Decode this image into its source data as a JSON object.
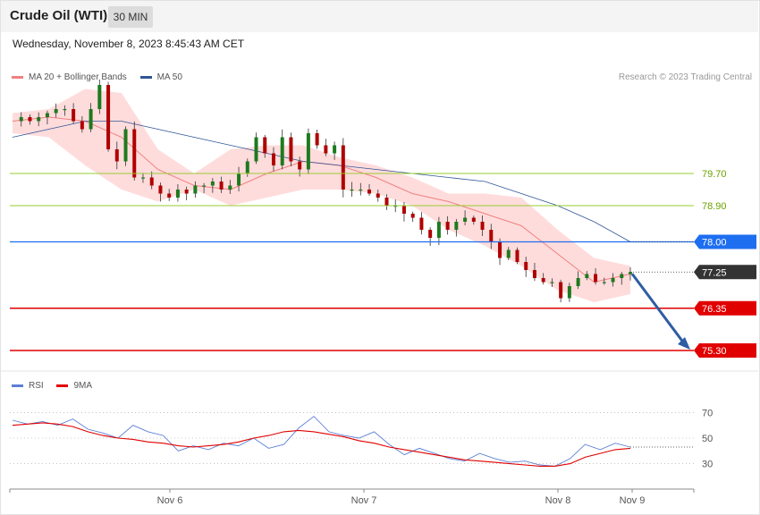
{
  "header": {
    "title": "Crude Oil (WTI)",
    "timeframe": "30 MIN",
    "datetime": "Wednesday, November 8, 2023 8:45:43 AM CET"
  },
  "legend_price": [
    {
      "label": "MA 20 + Bollinger Bands",
      "color": "#f08080"
    },
    {
      "label": "MA 50",
      "color": "#2f5597"
    }
  ],
  "legend_rsi": [
    {
      "label": "RSI",
      "color": "#5b7fd6"
    },
    {
      "label": "9MA",
      "color": "#e00000"
    }
  ],
  "credit": "Research © 2023 Trading Central",
  "colors": {
    "bull": "#1e7a1e",
    "bear": "#b00000",
    "band_fill": "#ffd6d6",
    "ma20": "#f08080",
    "ma50": "#2f5597",
    "resistance": "#9acd32",
    "pivot": "#1e6ef0",
    "support": "#e00000",
    "last": "#333333",
    "arrow": "#2e5ea3"
  },
  "chart_data": [
    {
      "type": "candlestick",
      "title": "Crude Oil (WTI)",
      "timeframe": "30 MIN",
      "x_ticks": [
        "Nov 6",
        "Nov 7",
        "Nov 8",
        "Nov 9"
      ],
      "ylim": [
        74.9,
        81.9
      ],
      "levels": [
        {
          "value": 79.7,
          "label": "79.70",
          "kind": "resistance"
        },
        {
          "value": 78.9,
          "label": "78.90",
          "kind": "resistance"
        },
        {
          "value": 78.0,
          "label": "78.00",
          "kind": "pivot"
        },
        {
          "value": 77.25,
          "label": "77.25",
          "kind": "last"
        },
        {
          "value": 76.35,
          "label": "76.35",
          "kind": "support"
        },
        {
          "value": 75.3,
          "label": "75.30",
          "kind": "support"
        }
      ],
      "close_path": [
        81.0,
        81.1,
        81.0,
        81.1,
        81.2,
        81.3,
        81.3,
        81.0,
        80.8,
        81.3,
        81.9,
        80.3,
        80.0,
        80.8,
        79.6,
        79.6,
        79.4,
        79.2,
        79.1,
        79.3,
        79.2,
        79.4,
        79.4,
        79.5,
        79.3,
        79.4,
        79.7,
        80.0,
        80.6,
        80.2,
        79.9,
        80.6,
        80.0,
        79.8,
        80.7,
        80.4,
        80.2,
        80.4,
        79.3,
        79.3,
        79.3,
        79.2,
        79.1,
        78.9,
        78.9,
        78.7,
        78.6,
        78.3,
        78.1,
        78.5,
        78.3,
        78.5,
        78.6,
        78.5,
        78.3,
        78.0,
        77.6,
        77.8,
        77.5,
        77.3,
        77.1,
        77.0,
        77.0,
        76.6,
        76.9,
        77.1,
        77.2,
        77.0,
        77.0,
        77.1,
        77.2,
        77.25
      ],
      "ma50_path": [
        80.6,
        80.8,
        81.0,
        81.0,
        80.8,
        80.6,
        80.4,
        80.2,
        80.0,
        79.9,
        79.8,
        79.7,
        79.6,
        79.5,
        79.2,
        78.9,
        78.5,
        78.0
      ],
      "ma20_path": [
        81.0,
        81.1,
        81.0,
        80.6,
        79.8,
        79.4,
        79.3,
        79.7,
        80.0,
        79.9,
        79.6,
        79.2,
        79.0,
        78.7,
        78.4,
        77.7,
        77.0,
        77.2
      ],
      "bb_upper_path": [
        81.2,
        81.3,
        81.8,
        81.7,
        80.3,
        79.7,
        80.3,
        80.4,
        80.4,
        80.1,
        79.9,
        79.6,
        79.2,
        79.2,
        79.1,
        78.3,
        77.6,
        77.4
      ],
      "bb_lower_path": [
        80.7,
        80.6,
        79.9,
        79.3,
        79.0,
        79.3,
        78.9,
        79.1,
        79.3,
        79.3,
        79.2,
        78.9,
        78.3,
        77.9,
        77.4,
        76.8,
        76.5,
        76.7
      ],
      "last_price": 77.25,
      "forecast_target": 75.3
    },
    {
      "type": "line",
      "title": "RSI",
      "ylim": [
        15,
        85
      ],
      "yticks": [
        30,
        50,
        70
      ],
      "series": [
        {
          "name": "RSI",
          "values": [
            64,
            61,
            63,
            60,
            65,
            57,
            54,
            50,
            60,
            55,
            52,
            40,
            44,
            41,
            46,
            44,
            50,
            42,
            45,
            58,
            67,
            55,
            52,
            50,
            55,
            45,
            37,
            42,
            38,
            34,
            32,
            38,
            34,
            31,
            32,
            29,
            28,
            34,
            45,
            41,
            46,
            43
          ]
        },
        {
          "name": "9MA",
          "values": [
            60,
            61,
            62,
            61,
            59,
            55,
            52,
            50,
            49,
            47,
            46,
            44,
            43,
            44,
            45,
            47,
            50,
            52,
            55,
            56,
            55,
            53,
            51,
            48,
            46,
            43,
            41,
            39,
            37,
            35,
            33,
            32,
            31,
            30,
            29,
            28,
            28,
            30,
            35,
            38,
            41,
            42
          ]
        }
      ]
    }
  ]
}
